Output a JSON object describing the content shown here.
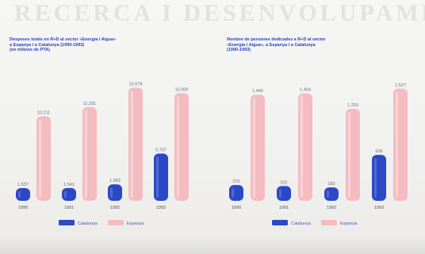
{
  "background_text": "RECERCA I DESENVOLUPAMENT",
  "colors": {
    "catalunya": "#2b49c6",
    "espanya": "#f4bcc0",
    "title": "#2a43b8"
  },
  "chart_data": [
    {
      "type": "bar",
      "title_lines": [
        "Despeses totals en R+D al sector «Energia i Aigua»",
        "a Espanya i a Catalunya (1990-1993)",
        "(en milions de PTA)"
      ],
      "categories": [
        "1990",
        "1991",
        "1992",
        "1993"
      ],
      "series": [
        {
          "name": "Catalunya",
          "values": [
            1537,
            1541,
            1992,
            5707
          ],
          "labels": [
            "1.537",
            "1.541",
            "1.992",
            "5.707"
          ]
        },
        {
          "name": "Espanya",
          "values": [
            10211,
            11331,
            13678,
            13000
          ],
          "labels": [
            "10.211",
            "11.331",
            "13.678",
            "13.000"
          ]
        }
      ],
      "ylim": [
        0,
        14000
      ],
      "legend": "bottom"
    },
    {
      "type": "bar",
      "title_lines": [
        "Nombre de persones dedicades a R+D al sector",
        "«Energia i Aigua», a Espanya i a Catalunya",
        "(1990-1993)"
      ],
      "categories": [
        "1990",
        "1991",
        "1992",
        "1993"
      ],
      "series": [
        {
          "name": "Catalunya",
          "values": [
            215,
            202,
            183,
            626
          ],
          "labels": [
            "215",
            "202",
            "183",
            "626"
          ]
        },
        {
          "name": "Espanya",
          "values": [
            1446,
            1464,
            1253,
            1527
          ],
          "labels": [
            "1.446",
            "1.464",
            "1.253",
            "1.527"
          ]
        }
      ],
      "ylim": [
        0,
        1600
      ],
      "legend": "bottom"
    }
  ]
}
